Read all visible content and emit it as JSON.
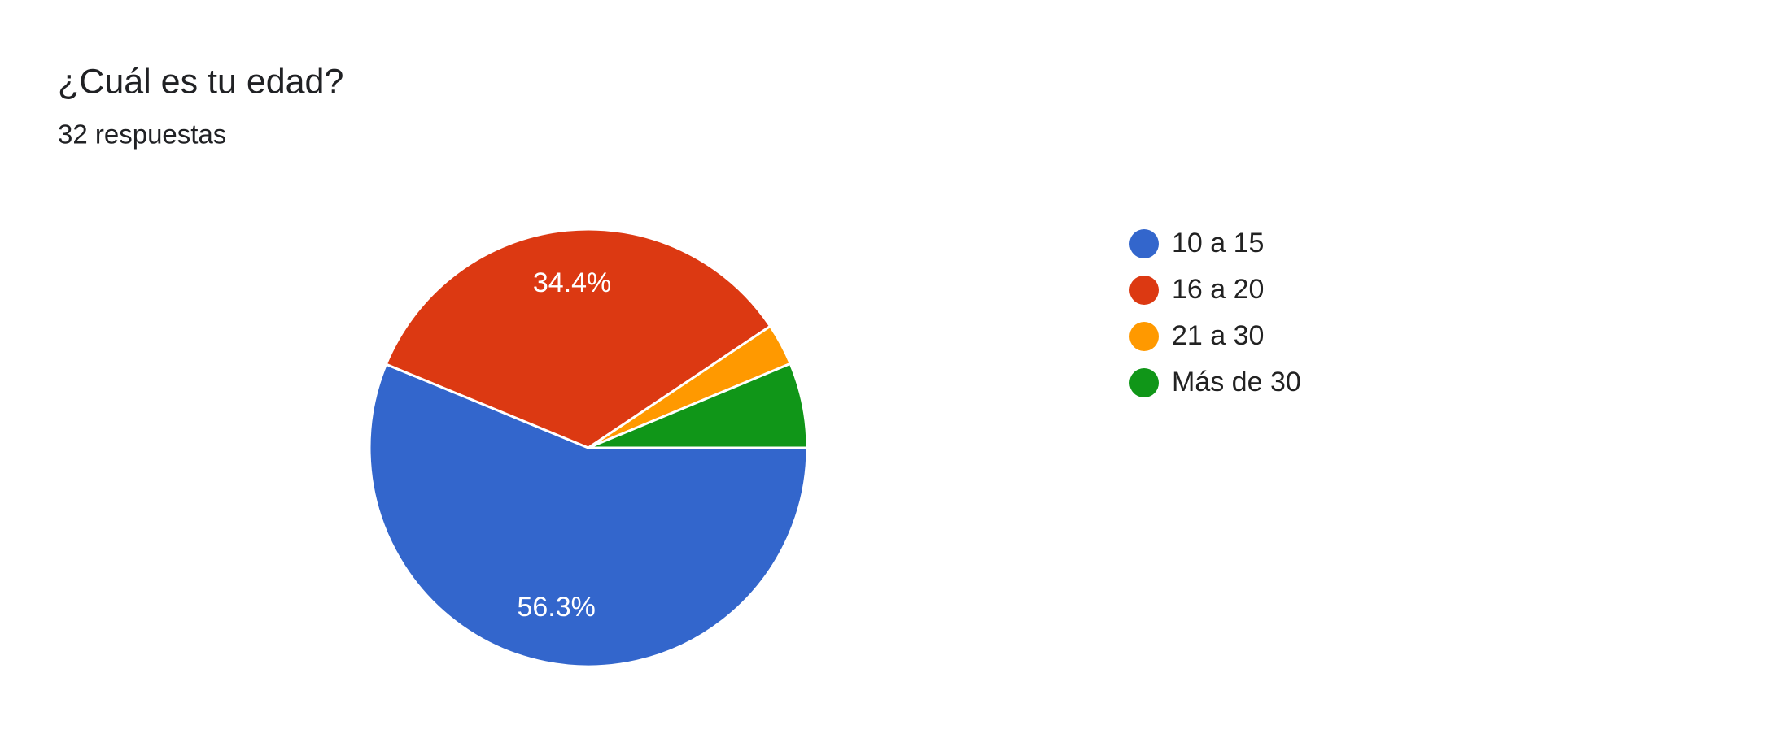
{
  "chart_data": {
    "type": "pie",
    "title": "¿Cuál es tu edad?",
    "subtitle": "32 respuestas",
    "categories": [
      "10 a 15",
      "16 a 20",
      "21 a 30",
      "Más de 30"
    ],
    "values": [
      56.3,
      34.4,
      3.1,
      6.3
    ],
    "value_labels": [
      "56.3%",
      "34.4%",
      null,
      null
    ],
    "colors": [
      "#3366cc",
      "#dc3912",
      "#ff9900",
      "#109618"
    ],
    "legend": "right"
  }
}
